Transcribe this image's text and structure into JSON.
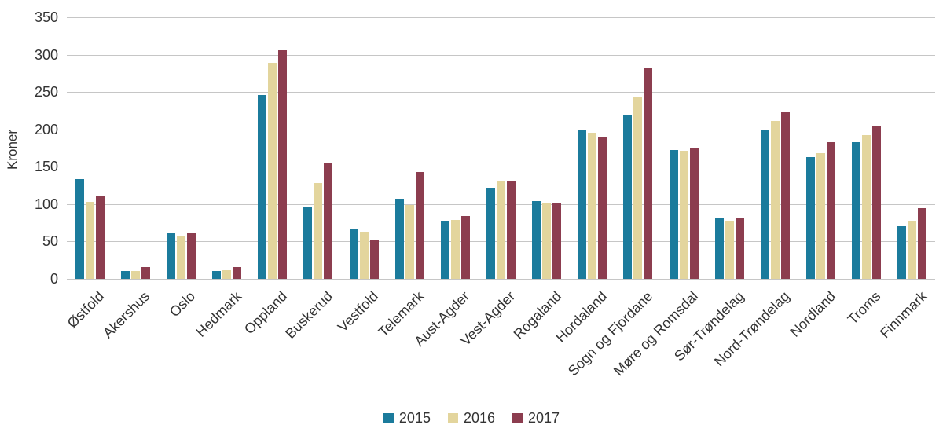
{
  "chart_data": {
    "type": "bar",
    "title": "",
    "xlabel": "",
    "ylabel": "Kroner",
    "ylim": [
      0,
      350
    ],
    "yticks": [
      0,
      50,
      100,
      150,
      200,
      250,
      300,
      350
    ],
    "grid": true,
    "legend_position": "bottom",
    "categories": [
      "Østfold",
      "Akershus",
      "Oslo",
      "Hedmark",
      "Oppland",
      "Buskerud",
      "Vestfold",
      "Telemark",
      "Aust-Agder",
      "Vest-Agder",
      "Rogaland",
      "Hordaland",
      "Sogn og Fjordane",
      "Møre og Romsdal",
      "Sør-Trøndelag",
      "Nord-Trøndelag",
      "Nordland",
      "Troms",
      "Finnmark"
    ],
    "series": [
      {
        "name": "2015",
        "color": "#1b7b9c",
        "values": [
          134,
          10,
          61,
          10,
          246,
          96,
          67,
          107,
          78,
          122,
          104,
          200,
          220,
          172,
          81,
          200,
          163,
          183,
          70
        ]
      },
      {
        "name": "2016",
        "color": "#e3d59d",
        "values": [
          103,
          11,
          58,
          12,
          289,
          128,
          63,
          99,
          79,
          130,
          101,
          195,
          243,
          171,
          78,
          211,
          168,
          192,
          77
        ]
      },
      {
        "name": "2017",
        "color": "#8c3d4f",
        "values": [
          110,
          16,
          61,
          16,
          306,
          154,
          53,
          143,
          84,
          131,
          101,
          189,
          283,
          175,
          81,
          223,
          183,
          204,
          95
        ]
      }
    ]
  }
}
